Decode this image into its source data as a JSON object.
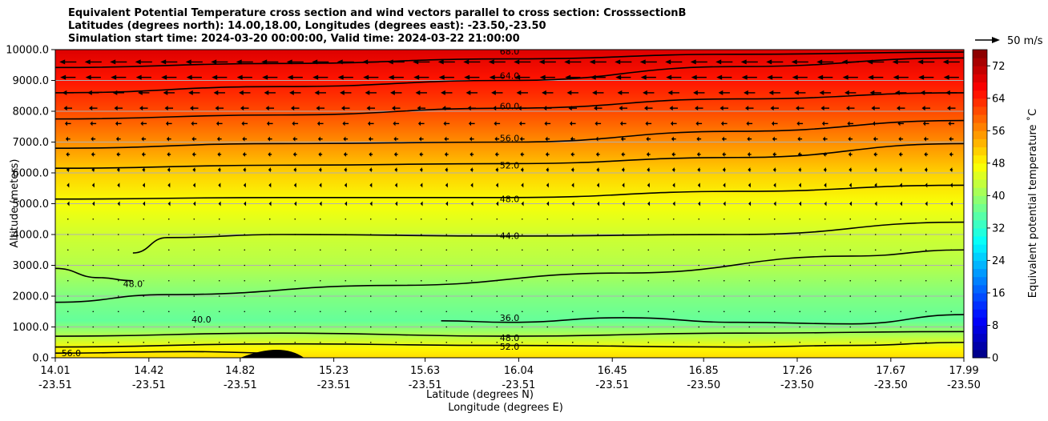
{
  "header": {
    "title_line1": "Equivalent Potential Temperature cross section and wind vectors parallel to cross section: CrosssectionB",
    "title_line2": "Latitudes (degrees north): 14.00,18.00, Longitudes (degrees east): -23.50,-23.50",
    "title_line3": "Simulation start time: 2024-03-20 00:00:00, Valid time: 2024-03-22 21:00:00"
  },
  "chart_data": {
    "type": "heatmap",
    "ylabel": "Altitude (meters)",
    "xlabel_line1": "Latitude (degrees N)",
    "xlabel_line2": "Longitude (degrees E)",
    "ylim": [
      0,
      10000
    ],
    "y_ticks": [
      "0.0",
      "1000.0",
      "2000.0",
      "3000.0",
      "4000.0",
      "5000.0",
      "6000.0",
      "7000.0",
      "8000.0",
      "9000.0",
      "10000.0"
    ],
    "x_ticks": [
      {
        "lat": "14.01",
        "lon": "-23.51"
      },
      {
        "lat": "14.42",
        "lon": "-23.51"
      },
      {
        "lat": "14.82",
        "lon": "-23.51"
      },
      {
        "lat": "15.23",
        "lon": "-23.51"
      },
      {
        "lat": "15.63",
        "lon": "-23.51"
      },
      {
        "lat": "16.04",
        "lon": "-23.51"
      },
      {
        "lat": "16.45",
        "lon": "-23.51"
      },
      {
        "lat": "16.85",
        "lon": "-23.50"
      },
      {
        "lat": "17.26",
        "lon": "-23.50"
      },
      {
        "lat": "17.67",
        "lon": "-23.50"
      },
      {
        "lat": "17.99",
        "lon": "-23.50"
      }
    ],
    "grid": true,
    "colorbar": {
      "label": "Equivalent potential temperature ˚C",
      "min": 0,
      "max": 76,
      "tick_labels": [
        "0",
        "8",
        "16",
        "24",
        "32",
        "40",
        "48",
        "56",
        "64",
        "72"
      ],
      "colormap": "jet"
    },
    "quiver_key": {
      "label": "50 m/s"
    },
    "background_levels": [
      {
        "altitude": 0,
        "value": 50
      },
      {
        "altitude": 300,
        "value": 48
      },
      {
        "altitude": 700,
        "value": 42
      },
      {
        "altitude": 1200,
        "value": 36
      },
      {
        "altitude": 2000,
        "value": 38
      },
      {
        "altitude": 3000,
        "value": 42
      },
      {
        "altitude": 4000,
        "value": 44
      },
      {
        "altitude": 5000,
        "value": 47
      },
      {
        "altitude": 6000,
        "value": 51
      },
      {
        "altitude": 7000,
        "value": 56
      },
      {
        "altitude": 8000,
        "value": 61
      },
      {
        "altitude": 9000,
        "value": 65
      },
      {
        "altitude": 10000,
        "value": 69
      }
    ],
    "contours": [
      {
        "level": "68.0",
        "label_lat": 16.0,
        "label_alt": 9950,
        "points": [
          [
            14.01,
            9420
          ],
          [
            15.0,
            9550
          ],
          [
            16.0,
            9700
          ],
          [
            17.0,
            9850
          ],
          [
            17.99,
            9920
          ]
        ]
      },
      {
        "level": "64.0",
        "label_lat": 16.0,
        "label_alt": 9150,
        "points": [
          [
            14.01,
            8600
          ],
          [
            15.0,
            8800
          ],
          [
            16.0,
            9000
          ],
          [
            17.0,
            9450
          ],
          [
            17.99,
            9730
          ]
        ]
      },
      {
        "level": "60.0",
        "label_lat": 16.0,
        "label_alt": 8170,
        "points": [
          [
            14.01,
            7750
          ],
          [
            15.0,
            7880
          ],
          [
            16.0,
            8100
          ],
          [
            17.0,
            8400
          ],
          [
            17.99,
            8600
          ]
        ]
      },
      {
        "level": "56.0",
        "label_lat": 16.0,
        "label_alt": 7130,
        "points": [
          [
            14.01,
            6800
          ],
          [
            15.0,
            6950
          ],
          [
            16.0,
            7000
          ],
          [
            17.0,
            7350
          ],
          [
            17.99,
            7700
          ]
        ]
      },
      {
        "level": "52.0",
        "label_lat": 16.0,
        "label_alt": 6250,
        "points": [
          [
            14.01,
            6150
          ],
          [
            15.0,
            6250
          ],
          [
            16.0,
            6300
          ],
          [
            17.0,
            6500
          ],
          [
            17.99,
            6950
          ]
        ]
      },
      {
        "level": "48.0",
        "label_lat": 16.0,
        "label_alt": 5150,
        "points": [
          [
            14.01,
            5150
          ],
          [
            15.0,
            5200
          ],
          [
            16.0,
            5200
          ],
          [
            17.0,
            5400
          ],
          [
            17.99,
            5600
          ]
        ]
      },
      {
        "level": "44.0",
        "label_lat": 16.0,
        "label_alt": 3960,
        "points": [
          [
            14.35,
            3400
          ],
          [
            14.5,
            3900
          ],
          [
            15.0,
            4000
          ],
          [
            16.0,
            3950
          ],
          [
            17.0,
            4000
          ],
          [
            17.99,
            4400
          ]
        ]
      },
      {
        "level": "40.0",
        "label_lat": 14.65,
        "label_alt": 1250,
        "points": [
          [
            14.01,
            1800
          ],
          [
            14.5,
            2050
          ],
          [
            15.5,
            2350
          ],
          [
            16.5,
            2750
          ],
          [
            17.5,
            3300
          ],
          [
            17.99,
            3500
          ]
        ]
      },
      {
        "level": "36.0",
        "label_lat": 16.0,
        "label_alt": 1300,
        "points": [
          [
            15.7,
            1200
          ],
          [
            16.0,
            1150
          ],
          [
            16.5,
            1300
          ],
          [
            17.0,
            1150
          ],
          [
            17.5,
            1100
          ],
          [
            17.99,
            1400
          ]
        ]
      },
      {
        "level": "48.0",
        "label_lat": 14.35,
        "label_alt": 2400,
        "points": [
          [
            14.01,
            2900
          ],
          [
            14.2,
            2600
          ],
          [
            14.35,
            2500
          ]
        ]
      },
      {
        "level": "48.0",
        "label_lat": 16.0,
        "label_alt": 650,
        "points": [
          [
            14.01,
            700
          ],
          [
            15.0,
            800
          ],
          [
            16.0,
            700
          ],
          [
            17.0,
            800
          ],
          [
            17.99,
            850
          ]
        ]
      },
      {
        "level": "52.0",
        "label_lat": 16.0,
        "label_alt": 360,
        "points": [
          [
            14.01,
            350
          ],
          [
            15.0,
            450
          ],
          [
            16.0,
            400
          ],
          [
            17.0,
            350
          ],
          [
            17.5,
            400
          ],
          [
            17.99,
            500
          ]
        ]
      },
      {
        "level": "56.0",
        "label_lat": 14.08,
        "label_alt": 150,
        "points": [
          [
            14.01,
            150
          ],
          [
            14.6,
            200
          ],
          [
            15.0,
            150
          ]
        ]
      }
    ],
    "wind_rows": [
      {
        "altitude": 9600,
        "u": -44
      },
      {
        "altitude": 9100,
        "u": -40
      },
      {
        "altitude": 8600,
        "u": -30
      },
      {
        "altitude": 8100,
        "u": -22
      },
      {
        "altitude": 7600,
        "u": -16
      },
      {
        "altitude": 7100,
        "u": -12
      },
      {
        "altitude": 6600,
        "u": -10
      },
      {
        "altitude": 6100,
        "u": -8
      },
      {
        "altitude": 5600,
        "u": -6
      },
      {
        "altitude": 5000,
        "u": -5
      },
      {
        "altitude": 4500,
        "u": -4
      },
      {
        "altitude": 4000,
        "u": -4
      },
      {
        "altitude": 3500,
        "u": -3
      },
      {
        "altitude": 3000,
        "u": -3
      },
      {
        "altitude": 2500,
        "u": -3
      },
      {
        "altitude": 2000,
        "u": -2
      },
      {
        "altitude": 1500,
        "u": -1
      },
      {
        "altitude": 1000,
        "u": -1
      },
      {
        "altitude": 500,
        "u": -1
      }
    ]
  }
}
